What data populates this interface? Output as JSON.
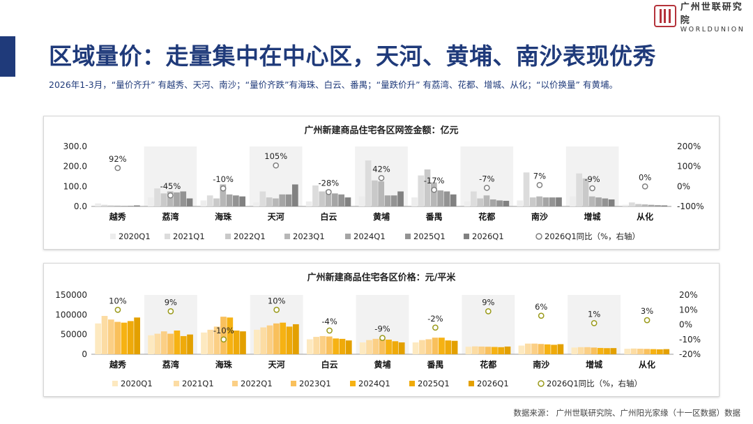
{
  "header": {
    "title": "区域量价：走量集中在中心区，天河、黄埔、南沙表现优秀",
    "subtitle": "2026年1-3月，“量价齐升” 有越秀、天河、南沙；“量价齐跌”有海珠、白云、番禺；“量跌价升” 有荔湾、花都、增城、从化；“以价换量” 有黄埔。",
    "logo_cn": "广州世联研究院",
    "logo_en": "WORLDUNION"
  },
  "source": "数据来源：  广州世联研究院、广州阳光家缘（十一区数据）数据",
  "colors": {
    "accent": "#1f3a7a",
    "brand": "#b4323a"
  },
  "chart_data": [
    {
      "type": "bar",
      "title": "广州新建商品住宅各区网签金额：亿元",
      "categories": [
        "越秀",
        "荔湾",
        "海珠",
        "天河",
        "白云",
        "黄埔",
        "番禺",
        "花都",
        "南沙",
        "增城",
        "从化"
      ],
      "ylim": [
        0,
        300
      ],
      "y_ticks": [
        "0.0",
        "100.0",
        "200.0",
        "300.0"
      ],
      "y2lim": [
        -100,
        200
      ],
      "y2_ticks": [
        "-100%",
        "0%",
        "100%",
        "200%"
      ],
      "bar_colors": [
        "#ededed",
        "#dcdcdc",
        "#c9c9c9",
        "#b7b7b7",
        "#a5a5a5",
        "#939393",
        "#818181"
      ],
      "marker": {
        "fill": "#ffffff",
        "stroke": "#7f7f7f"
      },
      "series": [
        {
          "name": "2020Q1",
          "values": [
            15,
            45,
            30,
            20,
            25,
            50,
            45,
            25,
            30,
            50,
            8
          ]
        },
        {
          "name": "2021Q1",
          "values": [
            8,
            90,
            55,
            75,
            105,
            230,
            155,
            75,
            170,
            165,
            20
          ]
        },
        {
          "name": "2022Q1",
          "values": [
            5,
            65,
            40,
            45,
            75,
            130,
            185,
            40,
            45,
            140,
            12
          ]
        },
        {
          "name": "2023Q1",
          "values": [
            4,
            75,
            110,
            40,
            80,
            125,
            120,
            55,
            50,
            50,
            10
          ]
        },
        {
          "name": "2024Q1",
          "values": [
            3,
            70,
            60,
            60,
            65,
            55,
            80,
            35,
            45,
            45,
            8
          ]
        },
        {
          "name": "2025Q1",
          "values": [
            3,
            75,
            55,
            60,
            60,
            55,
            75,
            30,
            45,
            40,
            6
          ]
        },
        {
          "name": "2026Q1",
          "values": [
            5,
            40,
            50,
            110,
            45,
            75,
            60,
            28,
            45,
            35,
            5
          ]
        }
      ],
      "yoy_name": "2026Q1同比（%，右轴）",
      "yoy": [
        92,
        -45,
        -10,
        105,
        -28,
        42,
        -17,
        -7,
        7,
        -9,
        0
      ],
      "yoy_labels": [
        "92%",
        "-45%",
        "-10%",
        "105%",
        "-28%",
        "42%",
        "-17%",
        "-7%",
        "7%",
        "-9%",
        "0%"
      ]
    },
    {
      "type": "bar",
      "title": "广州新建商品住宅各区价格：元/平米",
      "categories": [
        "越秀",
        "荔湾",
        "海珠",
        "天河",
        "白云",
        "黄埔",
        "番禺",
        "花都",
        "南沙",
        "增城",
        "从化"
      ],
      "ylim": [
        0,
        150000
      ],
      "y_ticks": [
        "0",
        "50000",
        "100000",
        "150000"
      ],
      "y2lim": [
        -20,
        20
      ],
      "y2_ticks": [
        "-20%",
        "-10%",
        "0%",
        "10%",
        "20%"
      ],
      "bar_colors": [
        "#fde9c0",
        "#fcdca3",
        "#fbcf85",
        "#f9c05c",
        "#f6b213",
        "#efaa0a",
        "#e3a000"
      ],
      "marker": {
        "fill": "#ffffff",
        "stroke": "#9a9a1a"
      },
      "series": [
        {
          "name": "2020Q1",
          "values": [
            78000,
            48000,
            55000,
            62000,
            38000,
            30000,
            30000,
            19000,
            22000,
            17000,
            14000
          ]
        },
        {
          "name": "2021Q1",
          "values": [
            97000,
            52000,
            62000,
            68000,
            44000,
            36000,
            36000,
            20000,
            27000,
            18000,
            14500
          ]
        },
        {
          "name": "2022Q1",
          "values": [
            88000,
            58000,
            70000,
            73000,
            46000,
            39000,
            38000,
            19500,
            27000,
            18000,
            14000
          ]
        },
        {
          "name": "2023Q1",
          "values": [
            82000,
            52000,
            95000,
            78000,
            45000,
            40000,
            42000,
            19000,
            26000,
            17000,
            13500
          ]
        },
        {
          "name": "2024Q1",
          "values": [
            80000,
            60000,
            93000,
            80000,
            40000,
            37000,
            42000,
            18500,
            25000,
            16000,
            13000
          ]
        },
        {
          "name": "2025Q1",
          "values": [
            84000,
            46000,
            60000,
            70000,
            39000,
            33000,
            35000,
            18000,
            24000,
            15500,
            12500
          ]
        },
        {
          "name": "2026Q1",
          "values": [
            93000,
            50000,
            58000,
            76000,
            35000,
            30000,
            34000,
            19500,
            25500,
            15600,
            13000
          ]
        }
      ],
      "yoy_name": "2026Q1同比（%，右轴）",
      "yoy": [
        10,
        9,
        -10,
        10,
        -4,
        -9,
        -2,
        9,
        6,
        1,
        3
      ],
      "yoy_labels": [
        "10%",
        "9%",
        "-10%",
        "10%",
        "-4%",
        "-9%",
        "-2%",
        "9%",
        "6%",
        "1%",
        "3%"
      ]
    }
  ]
}
